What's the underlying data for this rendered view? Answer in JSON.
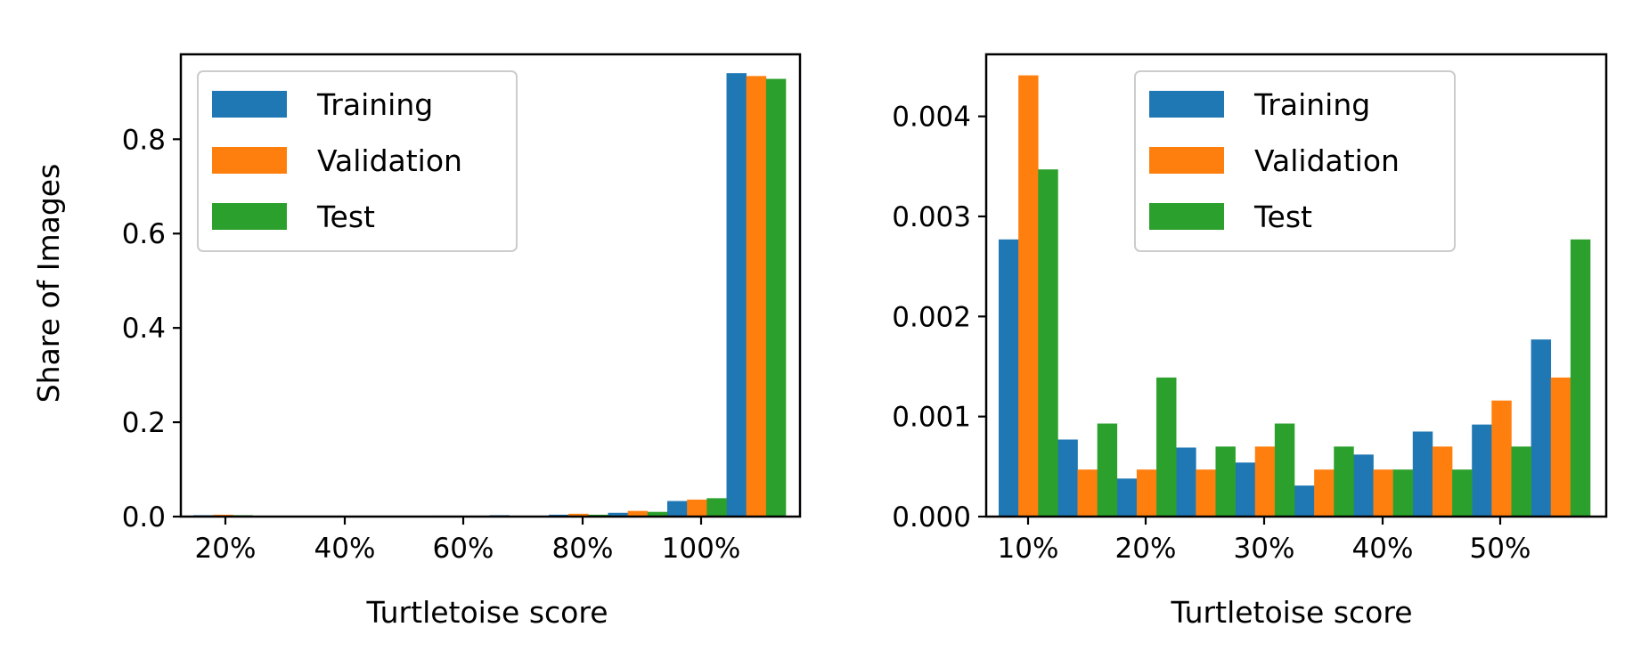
{
  "chart_data": [
    {
      "type": "bar",
      "title": "",
      "xlabel": "Turtletoise score",
      "ylabel": "Share of Images",
      "xticks": [
        "20%",
        "40%",
        "60%",
        "80%",
        "100%"
      ],
      "yticks": [
        "0.0",
        "0.2",
        "0.4",
        "0.6",
        "0.8"
      ],
      "ylim": [
        0,
        0.98
      ],
      "legend_position": "top-left",
      "grid": false,
      "bins": [
        "0-10%",
        "10-20%",
        "20-30%",
        "30-40%",
        "40-50%",
        "50-60%",
        "60-70%",
        "70-80%",
        "80-90%",
        "90-100%"
      ],
      "series": [
        {
          "name": "Training",
          "color": "#1f77b4",
          "values": [
            0.003,
            0.001,
            0.001,
            0.001,
            0.002,
            0.003,
            0.004,
            0.008,
            0.033,
            0.94
          ]
        },
        {
          "name": "Validation",
          "color": "#ff7f0e",
          "values": [
            0.004,
            0.001,
            0.001,
            0.001,
            0.002,
            0.002,
            0.006,
            0.012,
            0.036,
            0.934
          ]
        },
        {
          "name": "Test",
          "color": "#2ca02c",
          "values": [
            0.003,
            0.001,
            0.001,
            0.001,
            0.002,
            0.002,
            0.004,
            0.01,
            0.039,
            0.928
          ]
        }
      ]
    },
    {
      "type": "bar",
      "title": "",
      "xlabel": "Turtletoise score",
      "ylabel": "",
      "xticks": [
        "10%",
        "20%",
        "30%",
        "40%",
        "50%"
      ],
      "yticks": [
        "0.000",
        "0.001",
        "0.002",
        "0.003",
        "0.004"
      ],
      "ylim": [
        0,
        0.00462
      ],
      "legend_position": "top-center",
      "grid": false,
      "bins": [
        "0-5%",
        "5-10%",
        "10-15%",
        "15-20%",
        "20-25%",
        "25-30%",
        "30-35%",
        "35-40%",
        "40-45%",
        "45-50%"
      ],
      "series": [
        {
          "name": "Training",
          "color": "#1f77b4",
          "values": [
            0.00277,
            0.00077,
            0.00038,
            0.00069,
            0.00054,
            0.00031,
            0.00062,
            0.00085,
            0.00092,
            0.00177
          ]
        },
        {
          "name": "Validation",
          "color": "#ff7f0e",
          "values": [
            0.00441,
            0.00047,
            0.00047,
            0.00047,
            0.0007,
            0.00047,
            0.00047,
            0.0007,
            0.00116,
            0.00139
          ]
        },
        {
          "name": "Test",
          "color": "#2ca02c",
          "values": [
            0.00347,
            0.00093,
            0.00139,
            0.0007,
            0.00093,
            0.0007,
            0.00047,
            0.00047,
            0.0007,
            0.00277
          ]
        }
      ]
    }
  ]
}
